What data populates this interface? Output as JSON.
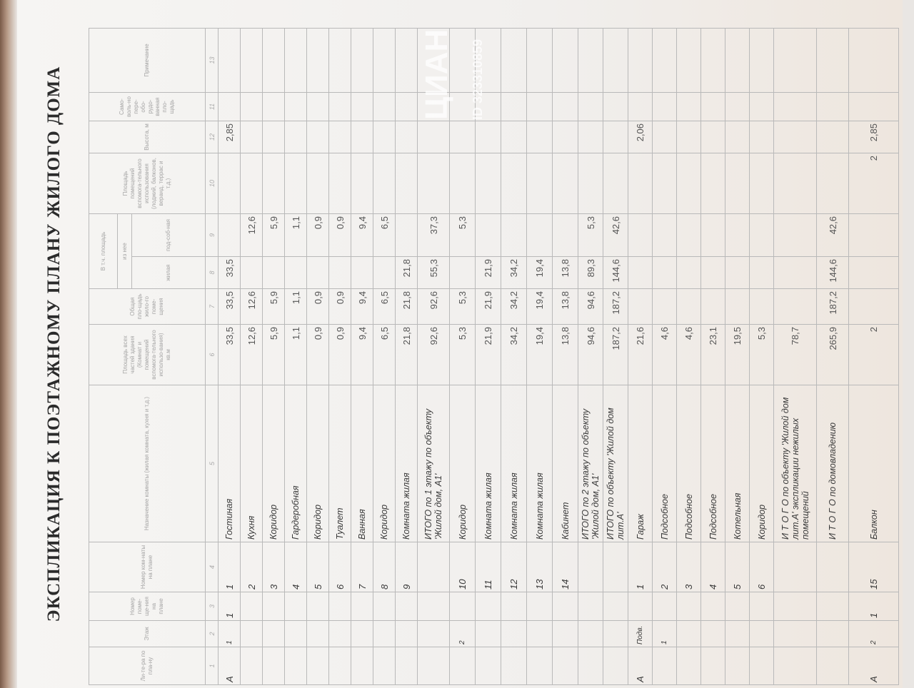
{
  "title": "ЭКСПЛИКАЦИЯ К ПОЭТАЖНОМУ ПЛАНУ ЖИЛОГО ДОМА",
  "headers": {
    "c1": "Ли-те-ра по пла-ну",
    "c2": "Этаж",
    "c3": "Номер поме-ще-ния на плане",
    "c4": "Номер ком-наты на плане",
    "c5": "Назначение комнаты (жилая комната, кухня и т.д.)",
    "c6": "Площадь всех частей здания (Комнат и помещений вспомога-тельного использо-вания) кв.м",
    "c7": "Общая пло-щадь жило-го поме-щения",
    "group": "В т.ч. площадь",
    "subgroup": "из нее",
    "c8": "жилая",
    "c9": "под-соб-ная",
    "c10": "Площадь помещений вспомога-тельного использования (лоджий, балконов, веранд, террас и т.д.)",
    "c12": "Высота, м",
    "c11": "Само-воль-но пере-обо-рудо-ванная пло-щадь",
    "c13": "Примечание"
  },
  "column_numbers": [
    "1",
    "2",
    "3",
    "4",
    "5",
    "6",
    "7",
    "8",
    "9",
    "10",
    "12",
    "11",
    "13"
  ],
  "rows": [
    [
      "А",
      "1",
      "1",
      "1",
      "Гостиная",
      "33,5",
      "33,5",
      "33,5",
      "",
      "",
      "2,85",
      "",
      ""
    ],
    [
      "",
      "",
      "",
      "2",
      "Кухня",
      "12,6",
      "12,6",
      "",
      "12,6",
      "",
      "",
      "",
      ""
    ],
    [
      "",
      "",
      "",
      "3",
      "Коридор",
      "5,9",
      "5,9",
      "",
      "5,9",
      "",
      "",
      "",
      ""
    ],
    [
      "",
      "",
      "",
      "4",
      "Гардеробная",
      "1,1",
      "1,1",
      "",
      "1,1",
      "",
      "",
      "",
      ""
    ],
    [
      "",
      "",
      "",
      "5",
      "Коридор",
      "0,9",
      "0,9",
      "",
      "0,9",
      "",
      "",
      "",
      ""
    ],
    [
      "",
      "",
      "",
      "6",
      "Туалет",
      "0,9",
      "0,9",
      "",
      "0,9",
      "",
      "",
      "",
      ""
    ],
    [
      "",
      "",
      "",
      "7",
      "Ванная",
      "9,4",
      "9,4",
      "",
      "9,4",
      "",
      "",
      "",
      ""
    ],
    [
      "",
      "",
      "",
      "8",
      "Коридор",
      "6,5",
      "6,5",
      "",
      "6,5",
      "",
      "",
      "",
      ""
    ],
    [
      "",
      "",
      "",
      "9",
      "Комната жилая",
      "21,8",
      "21,8",
      "21,8",
      "",
      "",
      "",
      "",
      ""
    ],
    [
      "",
      "",
      "",
      "",
      "ИТОГО по 1 этажу  по объекту 'Жилой дом, А1'",
      "92,6",
      "92,6",
      "55,3",
      "37,3",
      "",
      "",
      "",
      ""
    ],
    [
      "",
      "2",
      "",
      "10",
      "Коридор",
      "5,3",
      "5,3",
      "",
      "5,3",
      "",
      "",
      "",
      ""
    ],
    [
      "",
      "",
      "",
      "11",
      "Комната жилая",
      "21,9",
      "21,9",
      "21,9",
      "",
      "",
      "",
      "",
      ""
    ],
    [
      "",
      "",
      "",
      "12",
      "Комната жилая",
      "34,2",
      "34,2",
      "34,2",
      "",
      "",
      "",
      "",
      ""
    ],
    [
      "",
      "",
      "",
      "13",
      "Комната жилая",
      "19,4",
      "19,4",
      "19,4",
      "",
      "",
      "",
      "",
      ""
    ],
    [
      "",
      "",
      "",
      "14",
      "Кабинет",
      "13,8",
      "13,8",
      "13,8",
      "",
      "",
      "",
      "",
      ""
    ],
    [
      "",
      "",
      "",
      "",
      "ИТОГО по 2 этажу  по объекту 'Жилой дом, А1'",
      "94,6",
      "94,6",
      "89,3",
      "5,3",
      "",
      "",
      "",
      ""
    ],
    [
      "",
      "",
      "",
      "",
      "ИТОГО по объекту 'Жилой дом лит.А'",
      "187,2",
      "187,2",
      "144,6",
      "42,6",
      "",
      "",
      "",
      ""
    ],
    [
      "А",
      "Подв.",
      "",
      "1",
      "Гараж",
      "21,6",
      "",
      "",
      "",
      "",
      "2,06",
      "",
      ""
    ],
    [
      "",
      "1",
      "",
      "2",
      "Подсобное",
      "4,6",
      "",
      "",
      "",
      "",
      "",
      "",
      ""
    ],
    [
      "",
      "",
      "",
      "3",
      "Подсобное",
      "4,6",
      "",
      "",
      "",
      "",
      "",
      "",
      ""
    ],
    [
      "",
      "",
      "",
      "4",
      "Подсобное",
      "23,1",
      "",
      "",
      "",
      "",
      "",
      "",
      ""
    ],
    [
      "",
      "",
      "",
      "5",
      "Котельная",
      "19,5",
      "",
      "",
      "",
      "",
      "",
      "",
      ""
    ],
    [
      "",
      "",
      "",
      "6",
      "Коридор",
      "5,3",
      "",
      "",
      "",
      "",
      "",
      "",
      ""
    ],
    [
      "",
      "",
      "",
      "",
      "И Т О Г О по объекту 'Жилой дом лит.А' экспликации нежилых помещений",
      "78,7",
      "",
      "",
      "",
      "",
      "",
      "",
      ""
    ],
    [
      "",
      "",
      "",
      "",
      "И Т О Г О по домовладению",
      "265,9",
      "187,2",
      "144,6",
      "42,6",
      "",
      "",
      "",
      ""
    ],
    [
      "А",
      "2",
      "1",
      "15",
      "Балкон",
      "2",
      "",
      "",
      "",
      "2",
      "2,85",
      "",
      ""
    ]
  ],
  "watermark": {
    "brand": "ЦИАН",
    "id": "ID 323310859"
  }
}
